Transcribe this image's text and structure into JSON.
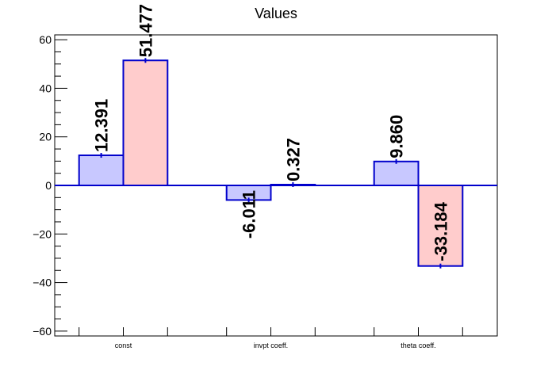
{
  "chart_data": {
    "type": "bar",
    "title": "Values",
    "categories": [
      "const",
      "invpt coeff.",
      "theta coeff."
    ],
    "series": [
      {
        "values": [
          12.391,
          -6.011,
          9.86
        ],
        "labels": [
          "12.391",
          "-6.011",
          "9.860"
        ],
        "fill": "#c8c8ff",
        "stroke": "#0000cc"
      },
      {
        "values": [
          51.477,
          0.327,
          -33.184
        ],
        "labels": [
          "51.477",
          "0.327",
          "-33.184"
        ],
        "fill": "#ffcccc",
        "stroke": "#0000cc"
      }
    ],
    "ylim": [
      -62,
      62
    ],
    "yticks": [
      -60,
      -40,
      -20,
      0,
      20,
      40,
      60
    ],
    "ytick_labels": [
      "−60",
      "−40",
      "−20",
      "0",
      "20",
      "40",
      "60"
    ],
    "xlabel": "",
    "ylabel": "",
    "grid": false,
    "colors": {
      "axis": "#000000",
      "zero_line": "#0000cc"
    }
  }
}
